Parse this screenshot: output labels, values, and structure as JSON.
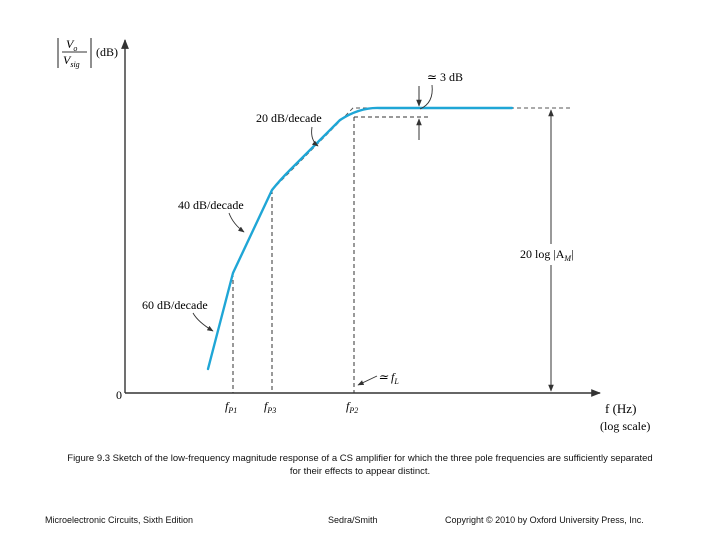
{
  "figure": {
    "ylabel_num": "V",
    "ylabel_num_sub": "o",
    "ylabel_den": "V",
    "ylabel_den_sub": "sig",
    "ylabel_unit": "(dB)",
    "origin": "0",
    "xlabel": "f (Hz)",
    "xlabel_scale": "(log scale)",
    "ticks": [
      {
        "main": "f",
        "sub": "P1"
      },
      {
        "main": "f",
        "sub": "P3"
      },
      {
        "main": "f",
        "sub": "P2"
      }
    ],
    "fL_label": "≃ f",
    "fL_sub": "L",
    "db3_label": "≃ 3 dB",
    "slopes": [
      "20 dB/decade",
      "40 dB/decade",
      "60 dB/decade"
    ],
    "gain_label": "20 log |A",
    "gain_sub": "M",
    "gain_close": "|",
    "colors": {
      "curve": "#1fa6d6",
      "asymptote": "#555555",
      "axis": "#333333"
    }
  },
  "caption": {
    "line1": "Figure 9.3 Sketch of the low-frequency magnitude response of a CS amplifier for which the three pole frequencies are sufficiently separated",
    "line2": "for their effects to appear distinct."
  },
  "footer": {
    "left": "Microelectronic Circuits, Sixth Edition",
    "center": "Sedra/Smith",
    "right": "Copyright © 2010 by Oxford University Press, Inc."
  }
}
